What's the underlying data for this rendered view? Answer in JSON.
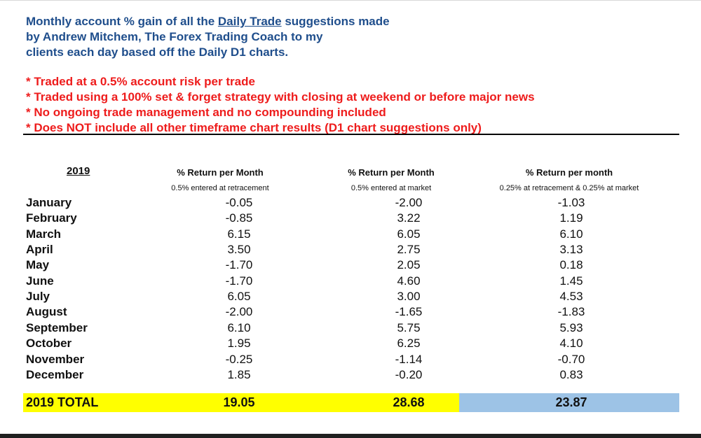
{
  "intro": {
    "line1_before": "Monthly account % gain of all the ",
    "line1_link": "Daily Trade",
    "line1_after": " suggestions made",
    "line2": "by Andrew Mitchem, The Forex Trading Coach to my",
    "line3": "clients each day based off the Daily D1 charts."
  },
  "notes": [
    "* Traded at a 0.5% account risk per trade",
    "* Traded using a 100% set & forget strategy with closing at weekend or before major news",
    "* No ongoing trade management and no compounding included",
    "* Does NOT include all other timeframe chart results (D1 chart suggestions only)"
  ],
  "table": {
    "year": "2019",
    "columns": [
      {
        "header": "% Return per Month",
        "sub": "0.5% entered at retracement"
      },
      {
        "header": "% Return per Month",
        "sub": "0.5% entered at market"
      },
      {
        "header": "% Return per month",
        "sub": "0.25% at retracement & 0.25% at market"
      }
    ],
    "rows": [
      {
        "month": "January",
        "v1": "-0.05",
        "v2": "-2.00",
        "v3": "-1.03"
      },
      {
        "month": "February",
        "v1": "-0.85",
        "v2": "3.22",
        "v3": "1.19"
      },
      {
        "month": "March",
        "v1": "6.15",
        "v2": "6.05",
        "v3": "6.10"
      },
      {
        "month": "April",
        "v1": "3.50",
        "v2": "2.75",
        "v3": "3.13"
      },
      {
        "month": "May",
        "v1": "-1.70",
        "v2": "2.05",
        "v3": "0.18"
      },
      {
        "month": "June",
        "v1": "-1.70",
        "v2": "4.60",
        "v3": "1.45"
      },
      {
        "month": "July",
        "v1": "6.05",
        "v2": "3.00",
        "v3": "4.53"
      },
      {
        "month": "August",
        "v1": "-2.00",
        "v2": "-1.65",
        "v3": "-1.83"
      },
      {
        "month": "September",
        "v1": "6.10",
        "v2": "5.75",
        "v3": "5.93"
      },
      {
        "month": "October",
        "v1": "1.95",
        "v2": "6.25",
        "v3": "4.10"
      },
      {
        "month": "November",
        "v1": "-0.25",
        "v2": "-1.14",
        "v3": "-0.70"
      },
      {
        "month": "December",
        "v1": "1.85",
        "v2": "-0.20",
        "v3": "0.83"
      }
    ],
    "total": {
      "label": "2019 TOTAL",
      "v1": "19.05",
      "v2": "28.68",
      "v3": "23.87"
    }
  },
  "colors": {
    "intro_text": "#1f4e8c",
    "notes_text": "#ee1c1c",
    "total_highlight_yellow": "#ffff00",
    "total_highlight_blue": "#9dc3e6"
  }
}
